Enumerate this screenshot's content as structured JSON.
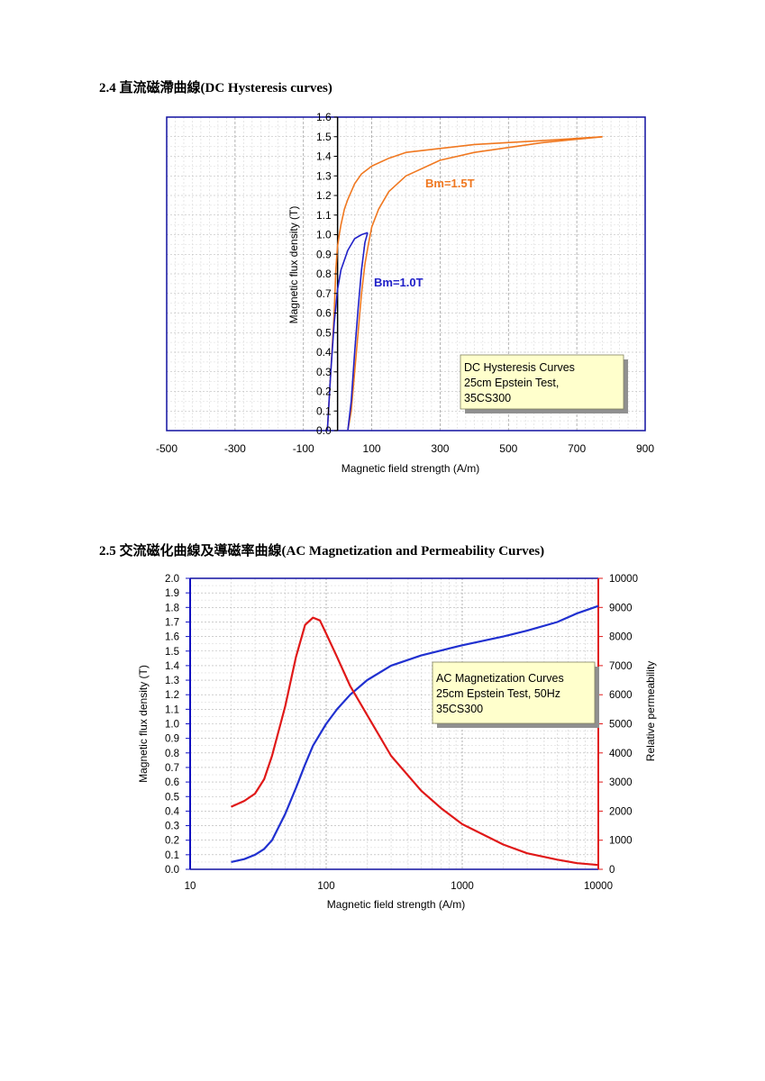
{
  "sections": [
    {
      "heading": "2.4 直流磁滯曲線(DC Hysteresis curves)"
    },
    {
      "heading": "2.5 交流磁化曲線及導磁率曲線(AC Magnetization and Permeability Curves)"
    }
  ],
  "chart_data": [
    {
      "type": "line",
      "xlabel": "Magnetic field strength (A/m)",
      "ylabel": "Magnetic flux density (T)",
      "xlim": [
        -500,
        900
      ],
      "ylim": [
        0,
        1.6
      ],
      "x_ticks": [
        "-500",
        "-300",
        "-100",
        "100",
        "300",
        "500",
        "700",
        "900"
      ],
      "y_ticks": [
        "0.0",
        "0.1",
        "0.2",
        "0.3",
        "0.4",
        "0.5",
        "0.6",
        "0.7",
        "0.8",
        "0.9",
        "1.0",
        "1.1",
        "1.2",
        "1.3",
        "1.4",
        "1.5",
        "1.6"
      ],
      "grid": true,
      "annotation_box": [
        "DC Hysteresis Curves",
        "25cm Epstein Test,",
        "35CS300"
      ],
      "series": [
        {
          "name": "Bm=1.5T",
          "color": "#f07820",
          "upper": {
            "x": [
              775,
              600,
              400,
              300,
              200,
              150,
              100,
              70,
              50,
              30,
              20,
              10,
              5,
              0,
              -5,
              -10,
              -20,
              -30
            ],
            "y": [
              1.5,
              1.48,
              1.46,
              1.44,
              1.42,
              1.39,
              1.35,
              1.31,
              1.26,
              1.18,
              1.13,
              1.05,
              1.0,
              0.94,
              0.82,
              0.6,
              0.3,
              0.0
            ]
          },
          "lower": {
            "x": [
              775,
              600,
              400,
              300,
              200,
              150,
              120,
              100,
              90,
              80,
              70,
              60,
              50,
              40,
              30
            ],
            "y": [
              1.5,
              1.47,
              1.42,
              1.38,
              1.3,
              1.22,
              1.13,
              1.04,
              0.95,
              0.85,
              0.7,
              0.5,
              0.3,
              0.1,
              0.0
            ]
          }
        },
        {
          "name": "Bm=1.0T",
          "color": "#2020c8",
          "upper": {
            "x": [
              88,
              70,
              50,
              30,
              10,
              0,
              -10,
              -20,
              -30
            ],
            "y": [
              1.01,
              1.0,
              0.98,
              0.92,
              0.82,
              0.72,
              0.55,
              0.3,
              0.0
            ]
          },
          "lower": {
            "x": [
              88,
              80,
              70,
              60,
              50,
              40,
              30
            ],
            "y": [
              1.01,
              0.96,
              0.82,
              0.62,
              0.4,
              0.15,
              0.0
            ]
          }
        }
      ],
      "curve_labels": [
        "Bm=1.5T",
        "Bm=1.0T"
      ]
    },
    {
      "type": "line",
      "xlabel": "Magnetic field strength (A/m)",
      "ylabel": "Magnetic flux density (T)",
      "y2label": "Relative permeability",
      "xscale": "log",
      "xlim": [
        10,
        10000
      ],
      "ylim": [
        0,
        2.0
      ],
      "y2lim": [
        0,
        10000
      ],
      "x_ticks": [
        "10",
        "100",
        "1000",
        "10000"
      ],
      "y_ticks": [
        "0.0",
        "0.1",
        "0.2",
        "0.3",
        "0.4",
        "0.5",
        "0.6",
        "0.7",
        "0.8",
        "0.9",
        "1.0",
        "1.1",
        "1.2",
        "1.3",
        "1.4",
        "1.5",
        "1.6",
        "1.7",
        "1.8",
        "1.9",
        "2.0"
      ],
      "y2_ticks": [
        "0",
        "1000",
        "2000",
        "3000",
        "4000",
        "5000",
        "6000",
        "7000",
        "8000",
        "9000",
        "10000"
      ],
      "grid": true,
      "annotation_box": [
        "AC Magnetization Curves",
        "25cm Epstein Test, 50Hz",
        "35CS300"
      ],
      "series": [
        {
          "axis": "left",
          "color": "#2030d0",
          "x": [
            20,
            25,
            30,
            35,
            40,
            50,
            60,
            70,
            80,
            100,
            120,
            150,
            200,
            300,
            500,
            1000,
            2000,
            3000,
            5000,
            7000,
            10000
          ],
          "y": [
            0.05,
            0.07,
            0.1,
            0.14,
            0.2,
            0.38,
            0.56,
            0.72,
            0.85,
            1.0,
            1.1,
            1.2,
            1.3,
            1.4,
            1.47,
            1.54,
            1.6,
            1.64,
            1.7,
            1.76,
            1.81
          ]
        },
        {
          "axis": "right",
          "color": "#e01818",
          "x": [
            20,
            25,
            30,
            35,
            40,
            50,
            60,
            70,
            80,
            90,
            100,
            120,
            150,
            200,
            300,
            500,
            700,
            1000,
            2000,
            3000,
            5000,
            7000,
            10000
          ],
          "y": [
            2150,
            2350,
            2600,
            3100,
            3900,
            5600,
            7300,
            8400,
            8650,
            8550,
            8100,
            7300,
            6300,
            5300,
            3900,
            2700,
            2100,
            1550,
            850,
            550,
            330,
            210,
            150
          ]
        }
      ]
    }
  ]
}
